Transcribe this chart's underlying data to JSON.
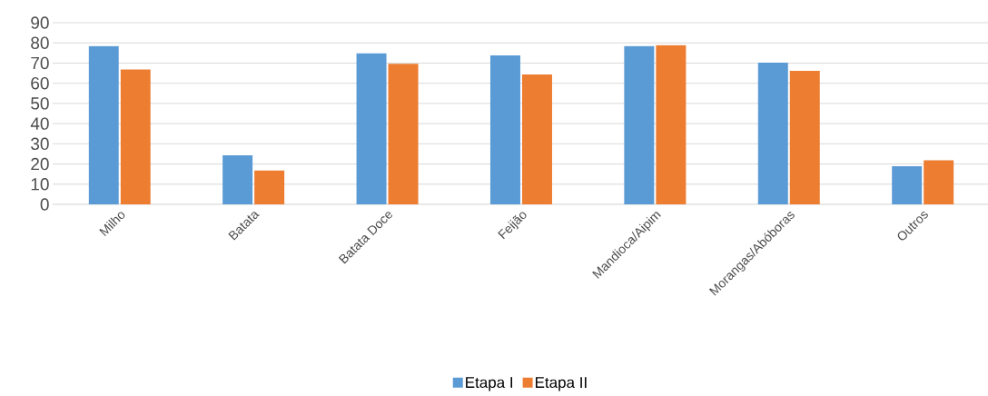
{
  "chart_data": {
    "type": "bar",
    "categories": [
      "Milho",
      "Batata",
      "Batata Doce",
      "Feijão",
      "Mandioca/Aipim",
      "Morangas/Abóboras",
      "Outros"
    ],
    "series": [
      {
        "name": "Etapa I",
        "color": "#5b9bd5",
        "values": [
          78.4,
          24.3,
          74.8,
          73.8,
          78.4,
          70.2,
          18.9
        ]
      },
      {
        "name": "Etapa II",
        "color": "#ed7d31",
        "values": [
          66.8,
          16.8,
          69.6,
          64.4,
          78.9,
          66.2,
          21.8
        ]
      }
    ],
    "ylim": [
      0,
      90
    ],
    "yticks": [
      0,
      10,
      20,
      30,
      40,
      50,
      60,
      70,
      80,
      90
    ],
    "grid": "y",
    "legend": "bottom"
  }
}
